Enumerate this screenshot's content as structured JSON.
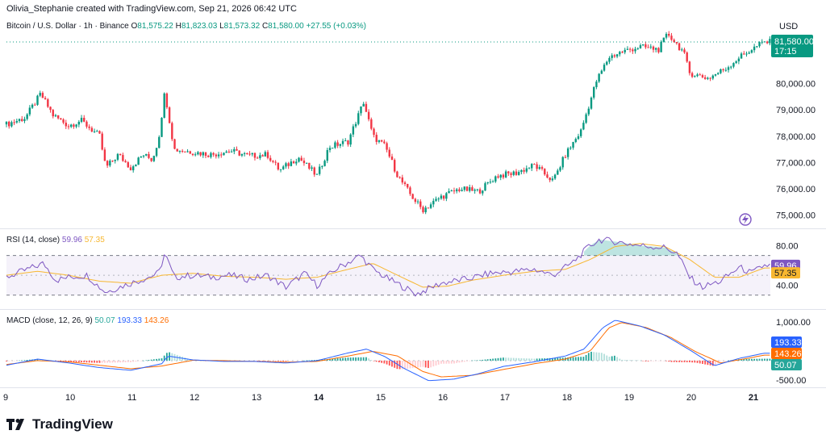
{
  "header": {
    "credit": "Olivia_Stephanie created with TradingView.com, Sep 21, 2026 06:42 UTC",
    "currency": "USD"
  },
  "legend": {
    "symbol": "Bitcoin / U.S. Dollar · 1h · Binance",
    "o_label": "O",
    "o": "81,575.22",
    "h_label": "H",
    "h": "81,823.03",
    "l_label": "L",
    "l": "81,573.32",
    "c_label": "C",
    "c": "81,580.00",
    "change": "+27.55 (+0.03%)"
  },
  "price_tags": {
    "last": "81,580.00",
    "countdown": "17:15"
  },
  "rsi": {
    "label": "RSI (14, close)",
    "value": "59.96",
    "ma": "57.35"
  },
  "macd": {
    "label": "MACD (close, 12, 26, 9)",
    "hist": "50.07",
    "macd": "193.33",
    "signal": "143.26"
  },
  "branding": "TradingView",
  "colors": {
    "up": "#089981",
    "down": "#f23645",
    "rsi": "#7e57c2",
    "rsi_ma": "#f7b731",
    "macd": "#2962ff",
    "signal": "#ff6d00"
  },
  "icons": {
    "flash": "lightning-circle-icon",
    "logo": "tradingview-logo-icon"
  },
  "chart_data": [
    {
      "type": "candlestick",
      "title": "Bitcoin / U.S. Dollar · 1h · Binance",
      "ylim": [
        74500,
        82500
      ],
      "y_ticks": [
        "80,000.00",
        "79,000.00",
        "78,000.00",
        "77,000.00",
        "76,000.00",
        "75,000.00"
      ],
      "x_ticks": [
        "9",
        "10",
        "11",
        "12",
        "13",
        "14",
        "15",
        "16",
        "17",
        "18",
        "19",
        "20",
        "21"
      ],
      "x_tick_days": [
        9,
        10,
        11,
        12,
        13,
        14,
        15,
        16,
        17,
        18,
        19,
        20,
        21
      ],
      "x_start_day": 9,
      "x_end_day": 21.3,
      "close_path": [
        [
          9.0,
          78450
        ],
        [
          9.3,
          78700
        ],
        [
          9.55,
          79600
        ],
        [
          9.75,
          78800
        ],
        [
          10.0,
          78400
        ],
        [
          10.2,
          78600
        ],
        [
          10.5,
          78000
        ],
        [
          10.6,
          76800
        ],
        [
          10.8,
          77300
        ],
        [
          11.0,
          76800
        ],
        [
          11.2,
          77300
        ],
        [
          11.35,
          77100
        ],
        [
          11.45,
          77900
        ],
        [
          11.55,
          79700
        ],
        [
          11.7,
          77500
        ],
        [
          12.0,
          77400
        ],
        [
          12.3,
          77300
        ],
        [
          12.6,
          77450
        ],
        [
          12.9,
          77250
        ],
        [
          13.2,
          77300
        ],
        [
          13.4,
          76700
        ],
        [
          13.7,
          77200
        ],
        [
          14.0,
          76500
        ],
        [
          14.2,
          77600
        ],
        [
          14.5,
          77800
        ],
        [
          14.75,
          79300
        ],
        [
          14.9,
          78000
        ],
        [
          15.1,
          77600
        ],
        [
          15.3,
          76500
        ],
        [
          15.5,
          75800
        ],
        [
          15.7,
          75200
        ],
        [
          16.0,
          75700
        ],
        [
          16.3,
          76000
        ],
        [
          16.6,
          75900
        ],
        [
          16.9,
          76500
        ],
        [
          17.2,
          76600
        ],
        [
          17.5,
          76900
        ],
        [
          17.8,
          76300
        ],
        [
          18.0,
          77300
        ],
        [
          18.25,
          78200
        ],
        [
          18.5,
          80100
        ],
        [
          18.7,
          81000
        ],
        [
          18.9,
          81200
        ],
        [
          19.2,
          81400
        ],
        [
          19.5,
          81300
        ],
        [
          19.65,
          81900
        ],
        [
          19.9,
          81200
        ],
        [
          20.0,
          80400
        ],
        [
          20.3,
          80200
        ],
        [
          20.6,
          80600
        ],
        [
          20.8,
          81000
        ],
        [
          21.0,
          81300
        ],
        [
          21.2,
          81580
        ]
      ],
      "last_price": 81580
    },
    {
      "type": "line",
      "title": "RSI (14, close)",
      "ylim": [
        20,
        90
      ],
      "y_ticks": [
        "80.00",
        "40.00"
      ],
      "bands": [
        70,
        30
      ],
      "series": [
        {
          "name": "RSI",
          "values": [
            [
              9.0,
              48
            ],
            [
              9.3,
              55
            ],
            [
              9.6,
              62
            ],
            [
              9.8,
              45
            ],
            [
              10.0,
              48
            ],
            [
              10.3,
              50
            ],
            [
              10.5,
              38
            ],
            [
              10.6,
              33
            ],
            [
              10.9,
              40
            ],
            [
              11.2,
              46
            ],
            [
              11.45,
              52
            ],
            [
              11.55,
              72
            ],
            [
              11.7,
              48
            ],
            [
              12.0,
              50
            ],
            [
              12.3,
              48
            ],
            [
              12.6,
              50
            ],
            [
              12.9,
              46
            ],
            [
              13.2,
              50
            ],
            [
              13.5,
              38
            ],
            [
              13.8,
              52
            ],
            [
              14.0,
              40
            ],
            [
              14.3,
              56
            ],
            [
              14.7,
              70
            ],
            [
              14.9,
              56
            ],
            [
              15.1,
              48
            ],
            [
              15.4,
              38
            ],
            [
              15.6,
              31
            ],
            [
              16.0,
              42
            ],
            [
              16.4,
              46
            ],
            [
              16.8,
              52
            ],
            [
              17.2,
              54
            ],
            [
              17.5,
              56
            ],
            [
              17.8,
              50
            ],
            [
              18.1,
              62
            ],
            [
              18.4,
              80
            ],
            [
              18.55,
              86
            ],
            [
              18.8,
              84
            ],
            [
              19.2,
              80
            ],
            [
              19.6,
              78
            ],
            [
              19.8,
              72
            ],
            [
              20.0,
              48
            ],
            [
              20.2,
              38
            ],
            [
              20.5,
              44
            ],
            [
              20.8,
              58
            ],
            [
              21.0,
              52
            ],
            [
              21.2,
              59.96
            ]
          ]
        },
        {
          "name": "MA",
          "values": [
            [
              9.0,
              50
            ],
            [
              9.5,
              54
            ],
            [
              10.0,
              50
            ],
            [
              10.5,
              44
            ],
            [
              11.0,
              42
            ],
            [
              11.5,
              50
            ],
            [
              12.0,
              52
            ],
            [
              12.5,
              49
            ],
            [
              13.0,
              48
            ],
            [
              13.5,
              46
            ],
            [
              14.0,
              48
            ],
            [
              14.5,
              56
            ],
            [
              14.9,
              62
            ],
            [
              15.3,
              50
            ],
            [
              15.7,
              38
            ],
            [
              16.1,
              39
            ],
            [
              16.5,
              45
            ],
            [
              17.0,
              50
            ],
            [
              17.5,
              54
            ],
            [
              18.0,
              56
            ],
            [
              18.4,
              66
            ],
            [
              18.8,
              79
            ],
            [
              19.2,
              82
            ],
            [
              19.6,
              79
            ],
            [
              20.0,
              66
            ],
            [
              20.4,
              48
            ],
            [
              20.8,
              48
            ],
            [
              21.2,
              57.35
            ]
          ]
        }
      ]
    },
    {
      "type": "bar",
      "title": "MACD (close, 12, 26, 9)",
      "ylim": [
        -650,
        1150
      ],
      "y_ticks": [
        "1,000.00",
        "-500.00"
      ],
      "series": [
        {
          "name": "MACD",
          "values": [
            [
              9.0,
              -120
            ],
            [
              9.5,
              40
            ],
            [
              10.0,
              -60
            ],
            [
              10.5,
              -180
            ],
            [
              11.0,
              -250
            ],
            [
              11.5,
              -80
            ],
            [
              11.6,
              120
            ],
            [
              12.0,
              20
            ],
            [
              12.5,
              -20
            ],
            [
              13.0,
              -20
            ],
            [
              13.5,
              -60
            ],
            [
              14.0,
              0
            ],
            [
              14.5,
              200
            ],
            [
              14.8,
              300
            ],
            [
              15.1,
              100
            ],
            [
              15.4,
              -200
            ],
            [
              15.8,
              -520
            ],
            [
              16.2,
              -480
            ],
            [
              16.6,
              -340
            ],
            [
              17.0,
              -150
            ],
            [
              17.5,
              -30
            ],
            [
              18.0,
              120
            ],
            [
              18.3,
              300
            ],
            [
              18.6,
              850
            ],
            [
              18.8,
              1050
            ],
            [
              19.2,
              900
            ],
            [
              19.6,
              660
            ],
            [
              20.0,
              280
            ],
            [
              20.4,
              -130
            ],
            [
              20.8,
              60
            ],
            [
              21.2,
              193.33
            ]
          ]
        },
        {
          "name": "Signal",
          "values": [
            [
              9.0,
              -100
            ],
            [
              9.5,
              0
            ],
            [
              10.0,
              -30
            ],
            [
              10.5,
              -120
            ],
            [
              11.0,
              -210
            ],
            [
              11.5,
              -140
            ],
            [
              12.0,
              10
            ],
            [
              12.5,
              0
            ],
            [
              13.0,
              -20
            ],
            [
              13.5,
              -40
            ],
            [
              14.0,
              -20
            ],
            [
              14.5,
              120
            ],
            [
              14.9,
              240
            ],
            [
              15.3,
              120
            ],
            [
              15.7,
              -280
            ],
            [
              16.0,
              -420
            ],
            [
              16.5,
              -380
            ],
            [
              17.0,
              -230
            ],
            [
              17.5,
              -80
            ],
            [
              18.0,
              40
            ],
            [
              18.4,
              250
            ],
            [
              18.7,
              850
            ],
            [
              18.9,
              990
            ],
            [
              19.3,
              860
            ],
            [
              19.7,
              600
            ],
            [
              20.1,
              230
            ],
            [
              20.5,
              -60
            ],
            [
              20.9,
              50
            ],
            [
              21.2,
              143.26
            ]
          ]
        }
      ],
      "histogram_last": 50.07
    }
  ]
}
